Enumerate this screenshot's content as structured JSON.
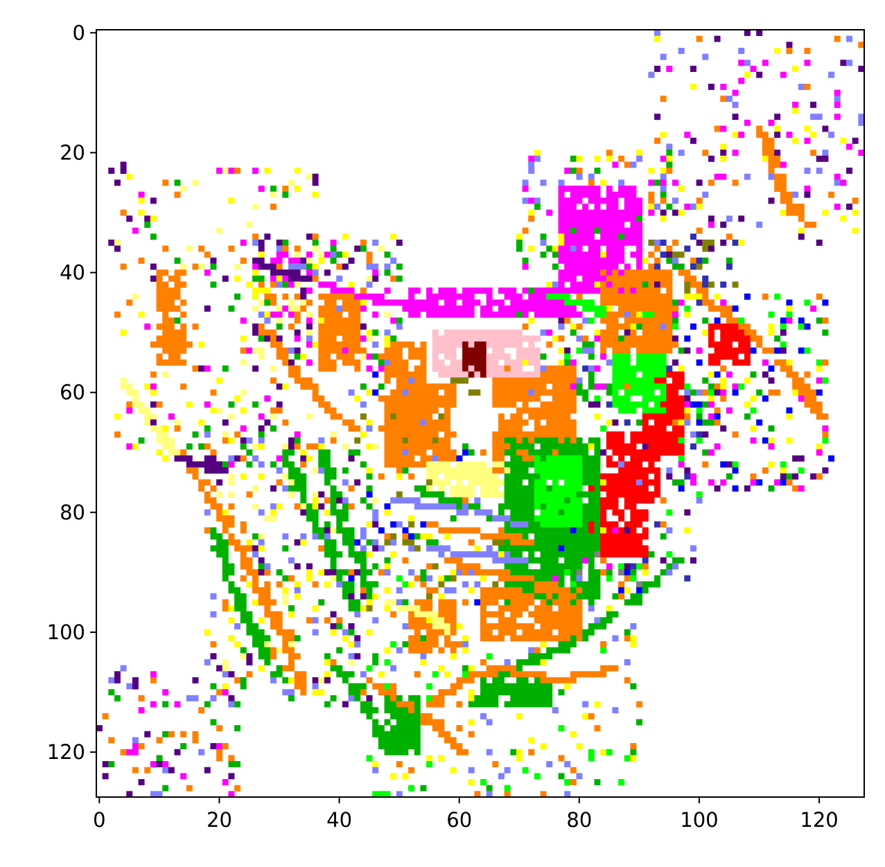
{
  "chart_data": {
    "type": "heatmap",
    "title": "",
    "xlabel": "",
    "ylabel": "",
    "xlim": [
      0,
      128
    ],
    "ylim": [
      128,
      0
    ],
    "x_ticks": [
      0,
      20,
      40,
      60,
      80,
      100,
      120
    ],
    "y_ticks": [
      0,
      20,
      40,
      60,
      80,
      100,
      120
    ],
    "x_tick_labels": [
      "0",
      "20",
      "40",
      "60",
      "80",
      "100",
      "120"
    ],
    "y_tick_labels": [
      "0",
      "20",
      "40",
      "60",
      "80",
      "100",
      "120"
    ],
    "grid": false,
    "legend": "none",
    "background": "#ffffff",
    "palette": {
      "orange": "#ff8000",
      "green": "#00b000",
      "bright_green": "#00ff00",
      "magenta": "#ff00ff",
      "red": "#ff0000",
      "yellow": "#ffff00",
      "light_yellow": "#ffff80",
      "purple": "#550080",
      "lavender": "#8080ff",
      "pink": "#ffc0cb",
      "maroon": "#800000",
      "olive": "#808000",
      "blue": "#0000ff",
      "dark_blue": "#3030b0",
      "gray": "#808080"
    },
    "regions": [
      {
        "color": "orange",
        "x": [
          52,
          59
        ],
        "y": [
          59,
          72
        ]
      },
      {
        "color": "orange",
        "x": [
          66,
          79
        ],
        "y": [
          56,
          73
        ]
      },
      {
        "color": "orange",
        "x": [
          37,
          43
        ],
        "y": [
          44,
          56
        ]
      },
      {
        "color": "orange",
        "x": [
          48,
          54
        ],
        "y": [
          52,
          72
        ]
      },
      {
        "color": "orange",
        "x": [
          10,
          14
        ],
        "y": [
          40,
          55
        ]
      },
      {
        "color": "orange",
        "x": [
          52,
          59
        ],
        "y": [
          95,
          103
        ]
      },
      {
        "color": "light_yellow",
        "x": [
          55,
          70
        ],
        "y": [
          72,
          77
        ]
      },
      {
        "color": "pink",
        "x": [
          56,
          73
        ],
        "y": [
          50,
          57
        ]
      },
      {
        "color": "maroon",
        "x": [
          61,
          64
        ],
        "y": [
          52,
          57
        ]
      },
      {
        "color": "magenta",
        "x": [
          52,
          79
        ],
        "y": [
          43,
          47
        ]
      },
      {
        "color": "magenta",
        "x": [
          77,
          90
        ],
        "y": [
          26,
          43
        ]
      },
      {
        "color": "red",
        "x": [
          80,
          91
        ],
        "y": [
          74,
          87
        ]
      },
      {
        "color": "red",
        "x": [
          85,
          93
        ],
        "y": [
          67,
          78
        ]
      },
      {
        "color": "red",
        "x": [
          91,
          97
        ],
        "y": [
          57,
          70
        ]
      },
      {
        "color": "red",
        "x": [
          102,
          108
        ],
        "y": [
          49,
          55
        ]
      },
      {
        "color": "green",
        "x": [
          68,
          83
        ],
        "y": [
          68,
          95
        ]
      },
      {
        "color": "bright_green",
        "x": [
          73,
          80
        ],
        "y": [
          71,
          82
        ]
      },
      {
        "color": "bright_green",
        "x": [
          86,
          94
        ],
        "y": [
          54,
          63
        ]
      },
      {
        "color": "green",
        "x": [
          64,
          75
        ],
        "y": [
          108,
          112
        ]
      },
      {
        "color": "orange",
        "x": [
          64,
          80
        ],
        "y": [
          93,
          101
        ]
      },
      {
        "color": "orange",
        "x": [
          84,
          95
        ],
        "y": [
          40,
          53
        ]
      },
      {
        "color": "green",
        "x": [
          48,
          53
        ],
        "y": [
          111,
          120
        ]
      }
    ],
    "strokes": [
      {
        "color": "green",
        "points": [
          [
            31,
            70
          ],
          [
            36,
            82
          ],
          [
            40,
            90
          ],
          [
            42,
            96
          ]
        ]
      },
      {
        "color": "green",
        "points": [
          [
            37,
            70
          ],
          [
            40,
            82
          ],
          [
            44,
            90
          ],
          [
            45,
            94
          ]
        ]
      },
      {
        "color": "green",
        "points": [
          [
            19,
            83
          ],
          [
            22,
            93
          ],
          [
            27,
            103
          ],
          [
            30,
            108
          ]
        ]
      },
      {
        "color": "green",
        "points": [
          [
            52,
            76
          ],
          [
            58,
            78
          ],
          [
            64,
            80
          ],
          [
            68,
            82
          ]
        ]
      },
      {
        "color": "green",
        "points": [
          [
            62,
            112
          ],
          [
            68,
            106
          ],
          [
            78,
            102
          ],
          [
            88,
            95
          ],
          [
            96,
            88
          ]
        ]
      },
      {
        "color": "green",
        "points": [
          [
            40,
            106
          ],
          [
            44,
            112
          ],
          [
            48,
            120
          ]
        ]
      },
      {
        "color": "orange",
        "points": [
          [
            9,
            66
          ],
          [
            15,
            72
          ],
          [
            20,
            80
          ],
          [
            26,
            92
          ],
          [
            31,
            102
          ],
          [
            34,
            110
          ]
        ]
      },
      {
        "color": "orange",
        "points": [
          [
            58,
            88
          ],
          [
            64,
            90
          ],
          [
            70,
            91
          ],
          [
            76,
            92
          ]
        ]
      },
      {
        "color": "orange",
        "points": [
          [
            54,
            82
          ],
          [
            60,
            83
          ],
          [
            66,
            84
          ],
          [
            72,
            85
          ]
        ]
      },
      {
        "color": "orange",
        "points": [
          [
            45,
            108
          ],
          [
            50,
            112
          ],
          [
            56,
            116
          ],
          [
            60,
            120
          ]
        ]
      },
      {
        "color": "orange",
        "points": [
          [
            55,
            112
          ],
          [
            60,
            108
          ],
          [
            66,
            106
          ],
          [
            76,
            108
          ],
          [
            86,
            106
          ]
        ]
      },
      {
        "color": "orange",
        "points": [
          [
            97,
            40
          ],
          [
            103,
            46
          ],
          [
            110,
            52
          ],
          [
            116,
            58
          ],
          [
            120,
            64
          ]
        ]
      },
      {
        "color": "orange",
        "points": [
          [
            110,
            16
          ],
          [
            112,
            22
          ],
          [
            114,
            28
          ],
          [
            118,
            32
          ]
        ]
      },
      {
        "color": "orange",
        "points": [
          [
            27,
            49
          ],
          [
            32,
            56
          ],
          [
            37,
            62
          ],
          [
            42,
            66
          ]
        ]
      },
      {
        "color": "purple",
        "points": [
          [
            26,
            38
          ],
          [
            30,
            40
          ],
          [
            34,
            41
          ]
        ]
      },
      {
        "color": "purple",
        "points": [
          [
            12,
            70
          ],
          [
            16,
            72
          ],
          [
            20,
            73
          ]
        ]
      },
      {
        "color": "lavender",
        "points": [
          [
            49,
            78
          ],
          [
            56,
            79
          ],
          [
            64,
            80
          ],
          [
            70,
            82
          ]
        ]
      },
      {
        "color": "lavender",
        "points": [
          [
            54,
            86
          ],
          [
            62,
            87
          ],
          [
            70,
            88
          ]
        ]
      },
      {
        "color": "magenta",
        "points": [
          [
            37,
            42
          ],
          [
            44,
            44
          ],
          [
            52,
            46
          ]
        ]
      },
      {
        "color": "bright_green",
        "points": [
          [
            75,
            44
          ],
          [
            80,
            45
          ],
          [
            84,
            47
          ]
        ]
      },
      {
        "color": "light_yellow",
        "points": [
          [
            4,
            58
          ],
          [
            8,
            64
          ],
          [
            12,
            70
          ]
        ]
      },
      {
        "color": "light_yellow",
        "points": [
          [
            48,
            95
          ],
          [
            54,
            97
          ],
          [
            58,
            100
          ]
        ]
      }
    ],
    "scatter_density": [
      {
        "colors": [
          "orange",
          "green",
          "purple",
          "lavender",
          "magenta",
          "yellow",
          "light_yellow"
        ],
        "x": [
          26,
          50
        ],
        "y": [
          34,
          56
        ],
        "count": 260
      },
      {
        "colors": [
          "orange",
          "green",
          "purple",
          "lavender",
          "yellow",
          "light_yellow"
        ],
        "x": [
          18,
          46
        ],
        "y": [
          66,
          112
        ],
        "count": 330
      },
      {
        "colors": [
          "orange",
          "green",
          "lavender",
          "yellow",
          "olive",
          "blue"
        ],
        "x": [
          42,
          70
        ],
        "y": [
          56,
          96
        ],
        "count": 260
      },
      {
        "colors": [
          "orange",
          "green",
          "magenta",
          "lavender",
          "yellow"
        ],
        "x": [
          70,
          96
        ],
        "y": [
          20,
          60
        ],
        "count": 280
      },
      {
        "colors": [
          "orange",
          "green",
          "bright_green",
          "lavender",
          "yellow",
          "purple",
          "dark_blue"
        ],
        "x": [
          76,
          100
        ],
        "y": [
          44,
          92
        ],
        "count": 280
      },
      {
        "colors": [
          "orange",
          "green",
          "bright_green",
          "magenta",
          "yellow",
          "purple",
          "blue"
        ],
        "x": [
          96,
          122
        ],
        "y": [
          44,
          76
        ],
        "count": 220
      },
      {
        "colors": [
          "orange",
          "magenta",
          "purple",
          "yellow",
          "lavender"
        ],
        "x": [
          92,
          128
        ],
        "y": [
          0,
          36
        ],
        "count": 170
      },
      {
        "colors": [
          "orange",
          "green",
          "magenta",
          "purple",
          "yellow",
          "light_yellow"
        ],
        "x": [
          2,
          36
        ],
        "y": [
          22,
          72
        ],
        "count": 220
      },
      {
        "colors": [
          "orange",
          "green",
          "purple",
          "magenta",
          "lavender"
        ],
        "x": [
          0,
          24
        ],
        "y": [
          106,
          128
        ],
        "count": 90
      },
      {
        "colors": [
          "orange",
          "green",
          "bright_green",
          "lavender",
          "yellow"
        ],
        "x": [
          44,
          90
        ],
        "y": [
          90,
          128
        ],
        "count": 260
      },
      {
        "colors": [
          "purple",
          "dark_blue",
          "olive",
          "orange",
          "green"
        ],
        "x": [
          91,
          106
        ],
        "y": [
          34,
          44
        ],
        "count": 50
      },
      {
        "colors": [
          "orange",
          "green",
          "bright_green",
          "magenta",
          "gray",
          "blue"
        ],
        "x": [
          74,
          90
        ],
        "y": [
          82,
          94
        ],
        "count": 90
      }
    ]
  }
}
